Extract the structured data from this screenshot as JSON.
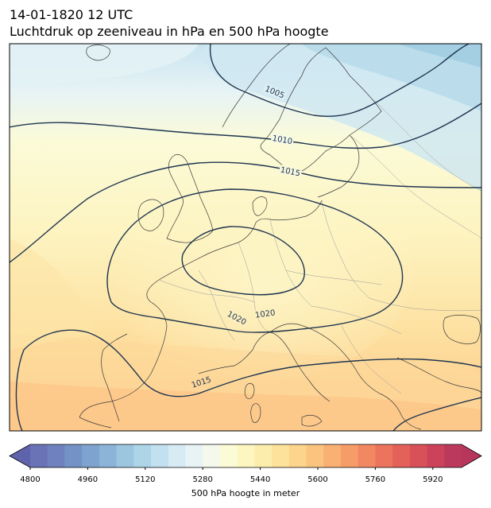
{
  "header": {
    "date_line": "14-01-1820 12 UTC",
    "subtitle": "Luchtdruk op zeeniveau in hPa en 500 hPa hoogte"
  },
  "map": {
    "isobar_labels": [
      "1005",
      "1010",
      "1015",
      "1020",
      "1020",
      "1015"
    ],
    "contour_color": "#1f3550",
    "coast_color": "#3a3a3a",
    "border_color": "#9a9a9a"
  },
  "colorbar": {
    "label": "500 hPa hoogte in meter",
    "ticks": [
      "4800",
      "4960",
      "5120",
      "5280",
      "5440",
      "5600",
      "5760",
      "5920"
    ],
    "colors": [
      "#6a73b6",
      "#6f82bf",
      "#7592c7",
      "#7ea3cf",
      "#8bb4d8",
      "#9cc6e0",
      "#aed4e8",
      "#c2e0ef",
      "#d6ebf4",
      "#e8f3f6",
      "#f4f9eb",
      "#fbfbd6",
      "#fdf6c1",
      "#fdedac",
      "#fde29b",
      "#fcd48c",
      "#fbc47e",
      "#f8b173",
      "#f59c69",
      "#f18861",
      "#ec745c",
      "#e36159",
      "#d95059",
      "#cc425b",
      "#bb3a5c"
    ]
  }
}
